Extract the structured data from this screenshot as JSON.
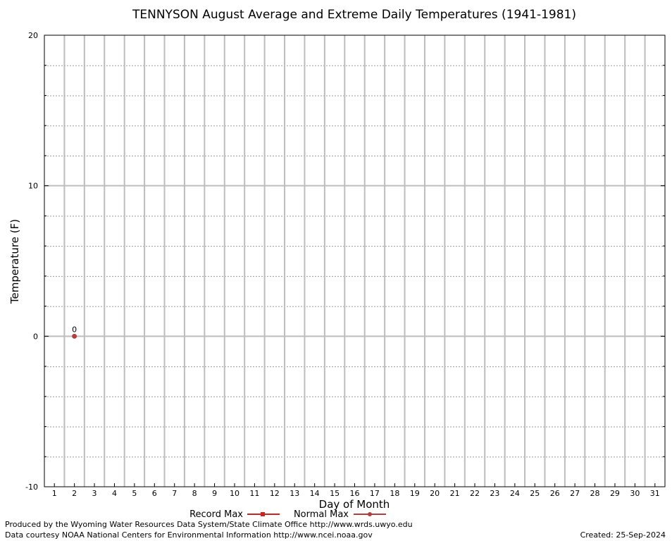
{
  "chart_data": {
    "type": "line",
    "title": "TENNYSON August Average and Extreme Daily Temperatures (1941-1981)",
    "xlabel": "Day of Month",
    "ylabel": "Temperature (F)",
    "xlim": [
      0.5,
      31.5
    ],
    "ylim": [
      -10,
      20
    ],
    "x_ticks": [
      "1",
      "2",
      "3",
      "4",
      "5",
      "6",
      "7",
      "8",
      "9",
      "10",
      "11",
      "12",
      "13",
      "14",
      "15",
      "16",
      "17",
      "18",
      "19",
      "20",
      "21",
      "22",
      "23",
      "24",
      "25",
      "26",
      "27",
      "28",
      "29",
      "30",
      "31"
    ],
    "y_ticks": [
      "20",
      "10",
      "0",
      "-10"
    ],
    "grid": true,
    "legend_position": "bottom-center",
    "series": [
      {
        "name": "Record Max",
        "color": "#cc2222",
        "points": []
      },
      {
        "name": "Normal Max",
        "color": "#b04040",
        "points": [
          {
            "x": 2,
            "y": 0,
            "label": "0"
          }
        ]
      }
    ]
  },
  "footer": {
    "produced_by": "Produced by the Wyoming Water Resources Data System/State Climate Office http://www.wrds.uwyo.edu",
    "courtesy": "Data courtesy NOAA National Centers for Environmental Information http://www.ncei.noaa.gov",
    "created": "Created:  25-Sep-2024"
  }
}
